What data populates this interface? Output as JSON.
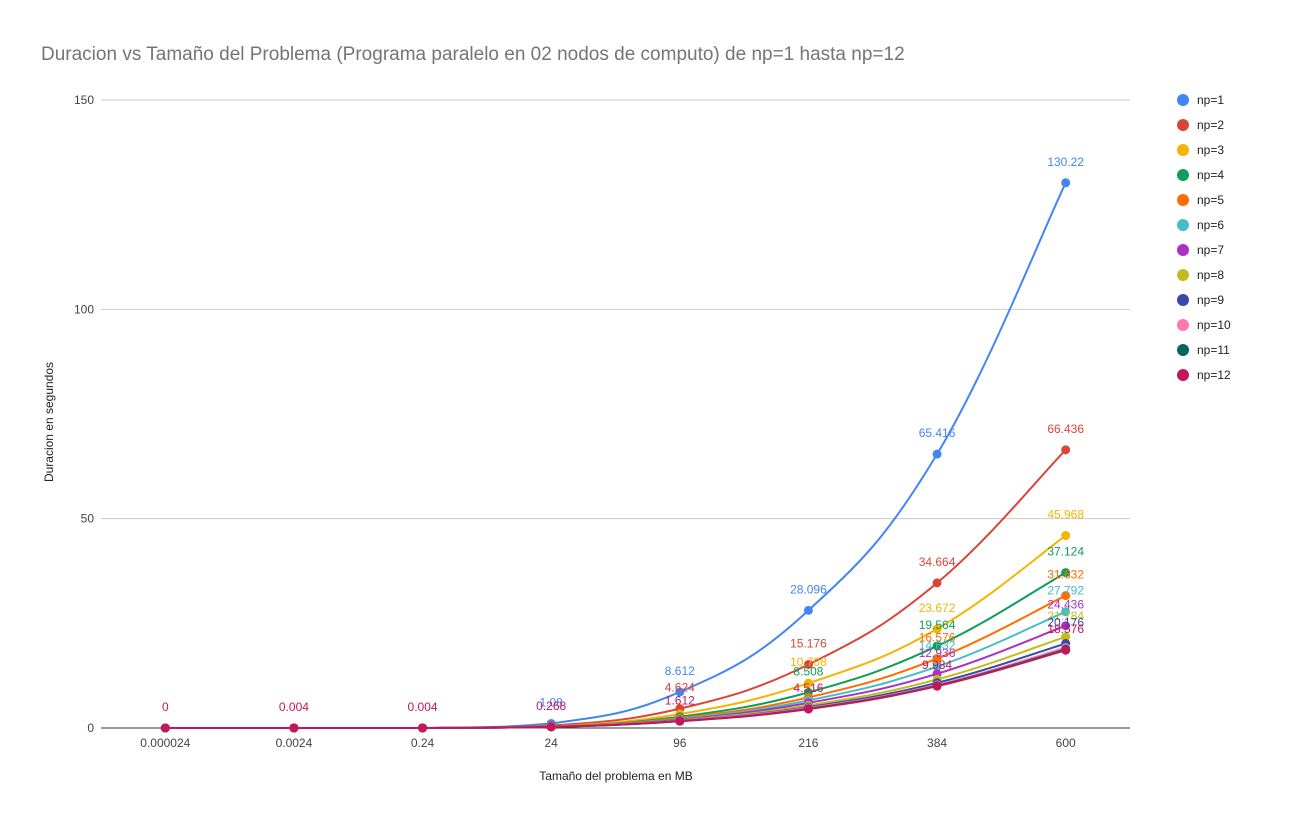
{
  "chart_data": {
    "type": "line",
    "title": "Duracion vs Tamaño del Problema (Programa paralelo en 02 nodos de computo) de np=1 hasta np=12",
    "xlabel": "Tamaño del problema en MB",
    "ylabel": "Duracion en segundos",
    "categories": [
      "0.000024",
      "0.0024",
      "0.24",
      "24",
      "96",
      "216",
      "384",
      "600"
    ],
    "ylim": [
      0,
      150
    ],
    "yticks": [
      "0",
      "50",
      "100",
      "150"
    ],
    "grid": true,
    "legend_position": "right",
    "series": [
      {
        "name": "np=1",
        "color": "#4285f4",
        "values": [
          0,
          0.004,
          0.004,
          1.08,
          8.612,
          28.096,
          65.416,
          130.22
        ],
        "labels": [
          "",
          "",
          "",
          "1.08",
          "8.612",
          "28.096",
          "65.416",
          "130.22"
        ]
      },
      {
        "name": "np=2",
        "color": "#db4437",
        "values": [
          0,
          0.004,
          0.004,
          0.56,
          4.624,
          15.176,
          34.664,
          66.436
        ],
        "labels": [
          "",
          "",
          "",
          "",
          "4.624",
          "15.176",
          "34.664",
          "66.436"
        ]
      },
      {
        "name": "np=3",
        "color": "#f4b400",
        "values": [
          0,
          0.004,
          0.004,
          0.4,
          3.336,
          10.708,
          23.672,
          45.968
        ],
        "labels": [
          "",
          "",
          "",
          "",
          "",
          "10.708",
          "23.672",
          "45.968"
        ]
      },
      {
        "name": "np=4",
        "color": "#0f9d58",
        "values": [
          0,
          0.004,
          0.004,
          0.34,
          2.7,
          8.508,
          19.564,
          37.124
        ],
        "labels": [
          "",
          "",
          "",
          "",
          "",
          "8.508",
          "19.564",
          "37.124"
        ]
      },
      {
        "name": "np=5",
        "color": "#ff6d00",
        "values": [
          0,
          0.004,
          0.004,
          0.32,
          2.4,
          7.3,
          16.576,
          31.632
        ],
        "labels": [
          "",
          "",
          "",
          "",
          "",
          "",
          "16.576",
          "31.632"
        ]
      },
      {
        "name": "np=6",
        "color": "#46bdc6",
        "values": [
          0,
          0.004,
          0.004,
          0.3,
          2.16,
          6.6,
          14.632,
          27.792
        ],
        "labels": [
          "",
          "",
          "",
          "",
          "",
          "",
          "14.632",
          "27.792"
        ]
      },
      {
        "name": "np=7",
        "color": "#ab30c4",
        "values": [
          0,
          0.004,
          0.004,
          0.29,
          2.0,
          6.0,
          12.936,
          24.436
        ],
        "labels": [
          "",
          "",
          "",
          "",
          "",
          "",
          "12.936",
          "24.436"
        ]
      },
      {
        "name": "np=8",
        "color": "#c2bd1f",
        "values": [
          0,
          0.004,
          0.004,
          0.28,
          1.85,
          5.4,
          11.6,
          21.784
        ],
        "labels": [
          "",
          "",
          "",
          "",
          "",
          "",
          "",
          "21.784"
        ]
      },
      {
        "name": "np=9",
        "color": "#3949ab",
        "values": [
          0,
          0.004,
          0.004,
          0.27,
          1.75,
          5.0,
          10.8,
          20.176
        ],
        "labels": [
          "",
          "",
          "",
          "",
          "",
          "",
          "",
          "20.176"
        ]
      },
      {
        "name": "np=10",
        "color": "#ff79ad",
        "values": [
          0,
          0.004,
          0.004,
          0.27,
          1.7,
          4.8,
          10.3,
          19.2
        ],
        "labels": [
          "",
          "",
          "",
          "",
          "",
          "",
          "",
          ""
        ]
      },
      {
        "name": "np=11",
        "color": "#00695c",
        "values": [
          0,
          0.004,
          0.004,
          0.268,
          1.65,
          4.6,
          10.1,
          18.8
        ],
        "labels": [
          "",
          "",
          "",
          "",
          "",
          "",
          "",
          ""
        ]
      },
      {
        "name": "np=12",
        "color": "#c2185b",
        "values": [
          0,
          0.004,
          0.004,
          0.268,
          1.612,
          4.516,
          9.984,
          18.576
        ],
        "labels": [
          "0",
          "0.004",
          "0.004",
          "0.268",
          "1.612",
          "4.516",
          "9.984",
          "18.576"
        ]
      }
    ]
  }
}
